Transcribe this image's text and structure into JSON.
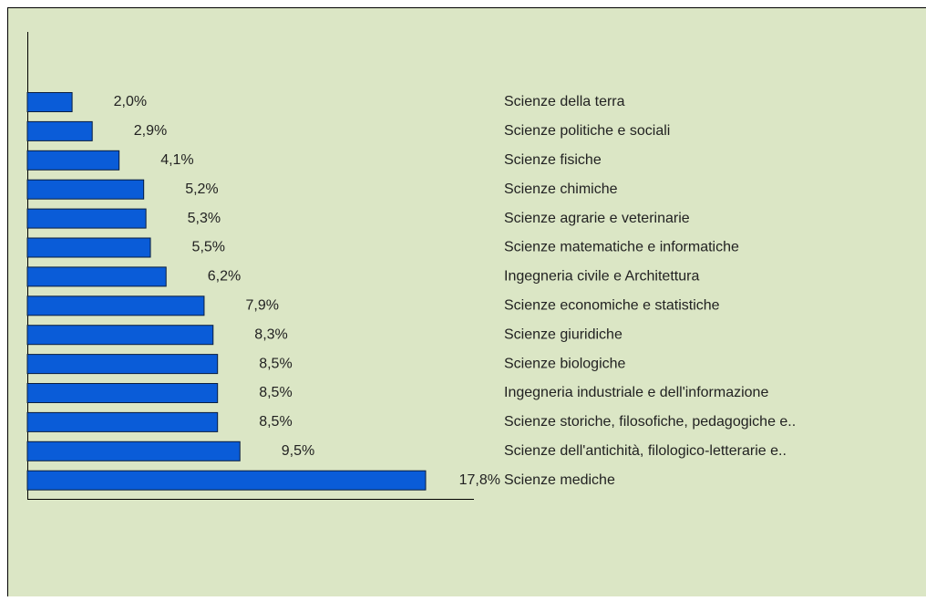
{
  "chart_data": {
    "type": "barh",
    "categories": [
      "Scienze della terra",
      "Scienze politiche e sociali",
      "Scienze fisiche",
      "Scienze chimiche",
      "Scienze agrarie e veterinarie",
      "Scienze matematiche e informatiche",
      "Ingegneria civile e Architettura",
      "Scienze economiche e statistiche",
      "Scienze giuridiche",
      "Scienze biologiche",
      "Ingegneria industriale e dell'informazione",
      "Scienze storiche, filosofiche, pedagogiche e..",
      "Scienze dell'antichità, filologico-letterarie e..",
      "Scienze mediche"
    ],
    "values": [
      2.0,
      2.9,
      4.1,
      5.2,
      5.3,
      5.5,
      6.2,
      7.9,
      8.3,
      8.5,
      8.5,
      8.5,
      9.5,
      17.8
    ],
    "value_labels": [
      "2,0%",
      "2,9%",
      "4,1%",
      "5,2%",
      "5,3%",
      "5,5%",
      "6,2%",
      "7,9%",
      "8,3%",
      "8,5%",
      "8,5%",
      "8,5%",
      "9,5%",
      "17,8%"
    ],
    "color": "#0a5cd8"
  }
}
